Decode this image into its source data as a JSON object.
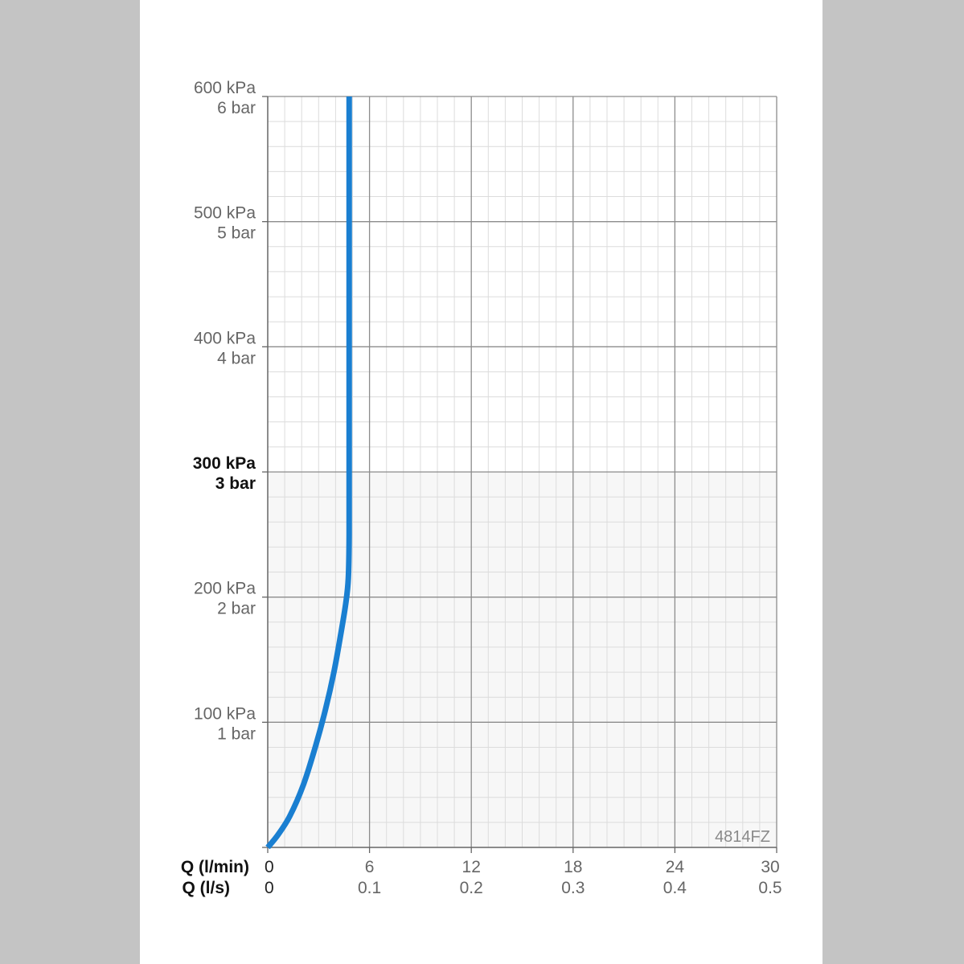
{
  "chart_data": {
    "type": "line",
    "code": "4814FZ",
    "y_axis": {
      "unit_kpa": "kPa",
      "unit_bar": "bar",
      "ticks": [
        {
          "kpa": "100 kPa",
          "bar": "1 bar",
          "value": 100,
          "bold": false
        },
        {
          "kpa": "200 kPa",
          "bar": "2 bar",
          "value": 200,
          "bold": false
        },
        {
          "kpa": "300 kPa",
          "bar": "3 bar",
          "value": 300,
          "bold": true
        },
        {
          "kpa": "400 kPa",
          "bar": "4 bar",
          "value": 400,
          "bold": false
        },
        {
          "kpa": "500 kPa",
          "bar": "5 bar",
          "value": 500,
          "bold": false
        },
        {
          "kpa": "600 kPa",
          "bar": "6 bar",
          "value": 600,
          "bold": false
        }
      ],
      "ylim": [
        0,
        600
      ]
    },
    "x_axis": {
      "label_lmin": "Q (l/min)",
      "label_ls": "Q (l/s)",
      "ticks_lmin": [
        "0",
        "6",
        "12",
        "18",
        "24",
        "30"
      ],
      "ticks_ls": [
        "0",
        "0.1",
        "0.2",
        "0.3",
        "0.4",
        "0.5"
      ],
      "values": [
        0,
        6,
        12,
        18,
        24,
        30
      ],
      "xlim": [
        0,
        30
      ]
    },
    "grid": true,
    "series": [
      {
        "color": "#1a7fd1",
        "x": [
          0,
          0.6,
          1.3,
          2.1,
          2.8,
          3.4,
          3.9,
          4.3,
          4.6,
          4.75,
          4.8,
          4.8,
          4.8,
          4.8
        ],
        "y": [
          0,
          10,
          25,
          50,
          80,
          110,
          140,
          170,
          195,
          215,
          250,
          350,
          500,
          600
        ]
      }
    ]
  }
}
